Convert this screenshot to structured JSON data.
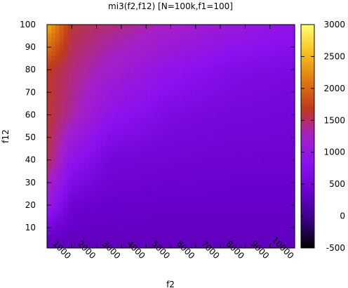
{
  "chart_data": {
    "type": "heatmap",
    "title": "mi3(f2,f12) [N=100k,f1=100]",
    "xlabel": "f2",
    "ylabel": "f12",
    "xlim": [
      1,
      10000
    ],
    "ylim": [
      1,
      100
    ],
    "x_ticks": [
      1000,
      2000,
      3000,
      4000,
      5000,
      6000,
      7000,
      8000,
      9000,
      10000
    ],
    "x_tick_labels": [
      "1000",
      "2000",
      "3000",
      "4000",
      "5000",
      "6000",
      "7000",
      "8000",
      "9000",
      "10000"
    ],
    "y_ticks": [
      10,
      20,
      30,
      40,
      50,
      60,
      70,
      80,
      90,
      100
    ],
    "y_tick_labels": [
      "10",
      "20",
      "30",
      "40",
      "50",
      "60",
      "70",
      "80",
      "90",
      "100"
    ],
    "colorbar": {
      "range": [
        -500,
        3000
      ],
      "ticks": [
        -500,
        0,
        500,
        1000,
        1500,
        2000,
        2500,
        3000
      ],
      "tick_labels": [
        "-500",
        "0",
        "500",
        "1000",
        "1500",
        "2000",
        "2500",
        "3000"
      ],
      "palette": [
        "#000000",
        "#3a0082",
        "#6a00cc",
        "#8a10f0",
        "#a520c8",
        "#c03a1a",
        "#e07a10",
        "#f8c020",
        "#ffff70"
      ]
    },
    "grid": false,
    "legend": "none",
    "sample_values": {
      "x": [
        100,
        1000,
        2500,
        5000,
        7500,
        10000
      ],
      "y": [
        5,
        20,
        40,
        60,
        80,
        100
      ],
      "z": [
        [
          300,
          300,
          300,
          300,
          300,
          300
        ],
        [
          1000,
          430,
          380,
          360,
          360,
          360
        ],
        [
          1500,
          900,
          540,
          480,
          450,
          440
        ],
        [
          1600,
          1350,
          900,
          640,
          560,
          520
        ],
        [
          1650,
          1450,
          1200,
          900,
          700,
          620
        ],
        [
          2400,
          1600,
          1450,
          1250,
          1050,
          900
        ]
      ]
    }
  }
}
